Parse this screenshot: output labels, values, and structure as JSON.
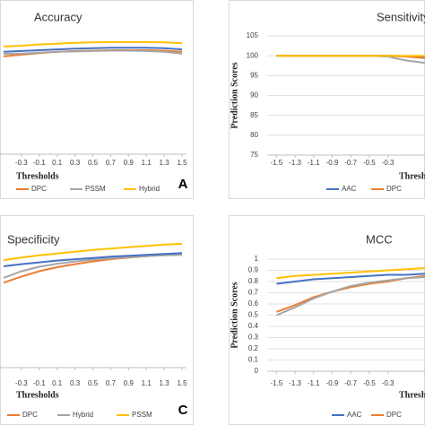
{
  "chart_data": [
    {
      "type": "line",
      "title": "Accuracy",
      "x_label": "Thresholds",
      "panel_label": "A",
      "x": [
        -0.5,
        -0.3,
        -0.1,
        0.1,
        0.3,
        0.5,
        0.7,
        0.9,
        1.1,
        1.3,
        1.5
      ],
      "xlim": [
        -0.55,
        1.55
      ],
      "ylim": [
        70,
        100
      ],
      "xticks": [
        -0.3,
        -0.1,
        0.1,
        0.3,
        0.5,
        0.7,
        0.9,
        1.1,
        1.3,
        1.5
      ],
      "series": [
        {
          "name": "DPC",
          "color": "#ed7d31",
          "values": [
            93.9,
            94.3,
            94.7,
            95.0,
            95.2,
            95.3,
            95.4,
            95.4,
            95.4,
            95.3,
            95.0
          ]
        },
        {
          "name": "PSSM",
          "color": "#a5a5a5",
          "values": [
            94.5,
            94.6,
            94.8,
            95.0,
            95.1,
            95.2,
            95.3,
            95.3,
            95.2,
            95.0,
            94.6
          ]
        },
        {
          "name": "Hybrid",
          "color": "#ffc000",
          "values": [
            96.3,
            96.5,
            96.8,
            97.0,
            97.2,
            97.3,
            97.4,
            97.4,
            97.4,
            97.3,
            97.1
          ]
        },
        {
          "color": "#4472c4",
          "values": [
            95.0,
            95.2,
            95.4,
            95.6,
            95.8,
            95.9,
            96.0,
            96.0,
            96.0,
            95.9,
            95.6
          ]
        }
      ]
    },
    {
      "type": "line",
      "title": "Sensitivity",
      "x_label": "Thresholds",
      "y_label": "Prediction Scores",
      "x": [
        -1.5,
        -1.3,
        -1.1,
        -0.9,
        -0.7,
        -0.5,
        -0.3,
        -0.1,
        0.1
      ],
      "xlim": [
        -1.6,
        0.1
      ],
      "ylim": [
        75,
        105
      ],
      "xticks": [
        -1.5,
        -1.3,
        -1.1,
        -0.9,
        -0.7,
        -0.5,
        -0.3
      ],
      "yticks": [
        75,
        80,
        85,
        90,
        95,
        100,
        105
      ],
      "series": [
        {
          "name": "AAC",
          "color": "#4472c4",
          "values": [
            100,
            100,
            100,
            100,
            100,
            100,
            100,
            99.9,
            99.6
          ]
        },
        {
          "name": "DPC",
          "color": "#ed7d31",
          "values": [
            100,
            100,
            100,
            100,
            100,
            100,
            100,
            99.8,
            99.4
          ]
        },
        {
          "color": "#a5a5a5",
          "values": [
            100,
            100,
            100,
            100,
            100,
            100,
            99.8,
            98.8,
            98.2
          ]
        },
        {
          "color": "#ffc000",
          "values": [
            100,
            100,
            100,
            100,
            100,
            100,
            100,
            100,
            100
          ]
        }
      ]
    },
    {
      "type": "line",
      "title": "Specificity",
      "x_label": "Thresholds",
      "panel_label": "C",
      "x": [
        -0.5,
        -0.3,
        -0.1,
        0.1,
        0.3,
        0.5,
        0.7,
        0.9,
        1.1,
        1.3,
        1.5
      ],
      "xlim": [
        -0.55,
        1.55
      ],
      "ylim": [
        70,
        100
      ],
      "xticks": [
        -0.3,
        -0.1,
        0.1,
        0.3,
        0.5,
        0.7,
        0.9,
        1.1,
        1.3,
        1.5
      ],
      "series": [
        {
          "name": "DPC",
          "color": "#ed7d31",
          "values": [
            89.2,
            90.6,
            91.8,
            92.7,
            93.4,
            94.0,
            94.5,
            94.9,
            95.2,
            95.5,
            95.7
          ]
        },
        {
          "name": "Hybrid",
          "color": "#a5a5a5",
          "values": [
            90.3,
            91.8,
            92.8,
            93.5,
            94.0,
            94.4,
            94.7,
            95.0,
            95.2,
            95.4,
            95.5
          ]
        },
        {
          "name": "PSSM",
          "color": "#ffc000",
          "values": [
            94.3,
            94.9,
            95.4,
            95.8,
            96.2,
            96.6,
            96.9,
            97.2,
            97.5,
            97.8,
            98.0
          ]
        },
        {
          "color": "#4472c4",
          "values": [
            92.9,
            93.4,
            93.8,
            94.2,
            94.5,
            94.8,
            95.1,
            95.3,
            95.5,
            95.7,
            95.9
          ]
        }
      ]
    },
    {
      "type": "line",
      "title": "MCC",
      "x_label": "Thresholds",
      "y_label": "Prediction Scores",
      "x": [
        -1.5,
        -1.3,
        -1.1,
        -0.9,
        -0.7,
        -0.5,
        -0.3,
        -0.1,
        0.1
      ],
      "xlim": [
        -1.6,
        0.1
      ],
      "ylim": [
        0,
        1
      ],
      "xticks": [
        -1.5,
        -1.3,
        -1.1,
        -0.9,
        -0.7,
        -0.5,
        -0.3
      ],
      "yticks": [
        0,
        0.1,
        0.2,
        0.3,
        0.4,
        0.5,
        0.6,
        0.7,
        0.8,
        0.9,
        1
      ],
      "series": [
        {
          "name": "AAC",
          "color": "#4472c4",
          "values": [
            0.78,
            0.8,
            0.82,
            0.83,
            0.84,
            0.85,
            0.86,
            0.86,
            0.87
          ]
        },
        {
          "name": "DPC",
          "color": "#ed7d31",
          "values": [
            0.53,
            0.59,
            0.66,
            0.71,
            0.75,
            0.78,
            0.8,
            0.83,
            0.85
          ]
        },
        {
          "color": "#a5a5a5",
          "values": [
            0.5,
            0.57,
            0.65,
            0.71,
            0.76,
            0.79,
            0.81,
            0.83,
            0.84
          ]
        },
        {
          "color": "#ffc000",
          "values": [
            0.83,
            0.85,
            0.86,
            0.87,
            0.88,
            0.89,
            0.9,
            0.91,
            0.92
          ]
        }
      ]
    }
  ]
}
